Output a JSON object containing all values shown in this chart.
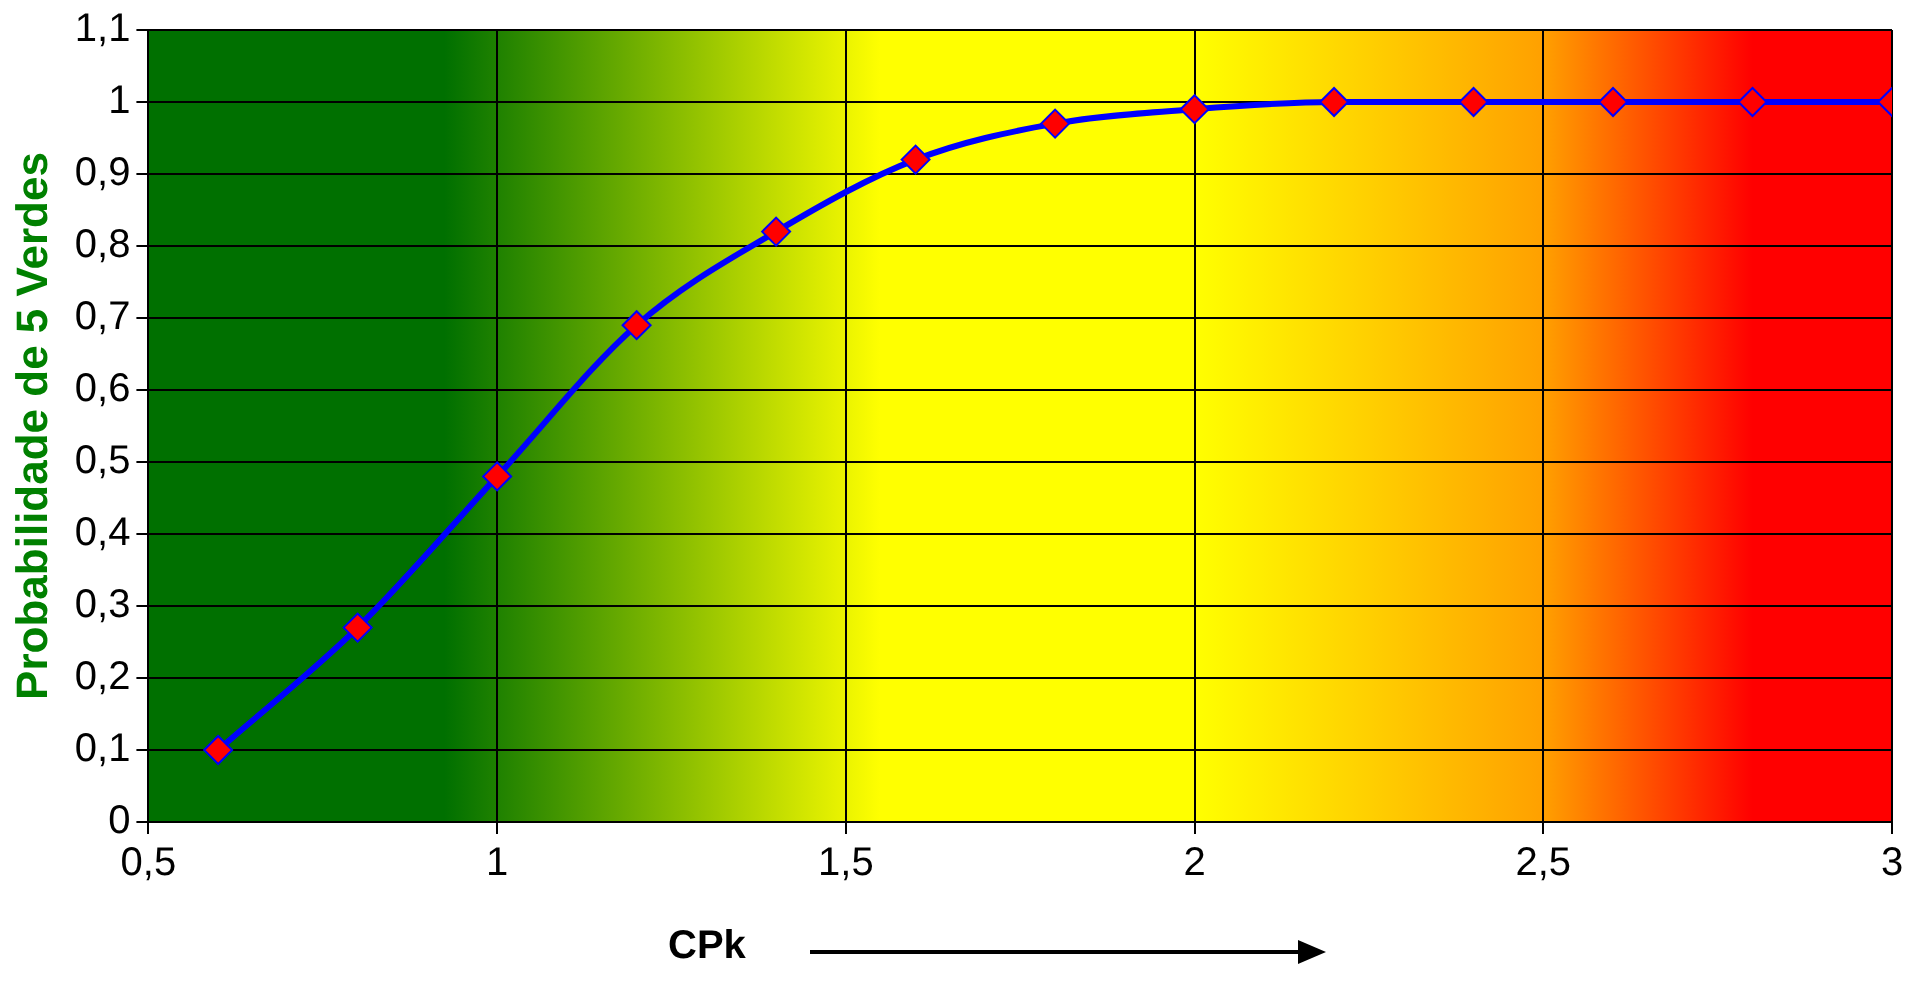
{
  "chart_data": {
    "type": "line",
    "xlabel": "CPk",
    "ylabel": "Probabilidade de 5 Verdes",
    "x": [
      0.6,
      0.8,
      1.0,
      1.2,
      1.4,
      1.6,
      1.8,
      2.0,
      2.2,
      2.4,
      2.6,
      2.8,
      3.0
    ],
    "series": [
      {
        "color": "#0000ff",
        "values": [
          0.1,
          0.27,
          0.48,
          0.69,
          0.82,
          0.92,
          0.97,
          0.99,
          1.0,
          1.0,
          1.0,
          1.0,
          1.0
        ]
      }
    ],
    "xlim": [
      0.5,
      3
    ],
    "xticks": [
      {
        "value": 0.5,
        "label": "0,5"
      },
      1,
      {
        "value": 1.5,
        "label": "1,5"
      },
      2,
      {
        "value": 2.5,
        "label": "2,5"
      },
      3
    ],
    "ylim": [
      0,
      1.1
    ],
    "yticks": [
      0,
      {
        "value": 0.1,
        "label": "0,1"
      },
      {
        "value": 0.2,
        "label": "0,2"
      },
      {
        "value": 0.3,
        "label": "0,3"
      },
      {
        "value": 0.4,
        "label": "0,4"
      },
      {
        "value": 0.5,
        "label": "0,5"
      },
      {
        "value": 0.6,
        "label": "0,6"
      },
      {
        "value": 0.7,
        "label": "0,7"
      },
      {
        "value": 0.8,
        "label": "0,8"
      },
      {
        "value": 0.9,
        "label": "0,9"
      },
      1,
      {
        "value": 1.1,
        "label": "1,1"
      }
    ],
    "grid": true,
    "legend": false,
    "marker": "diamond",
    "line_style": "solid"
  }
}
